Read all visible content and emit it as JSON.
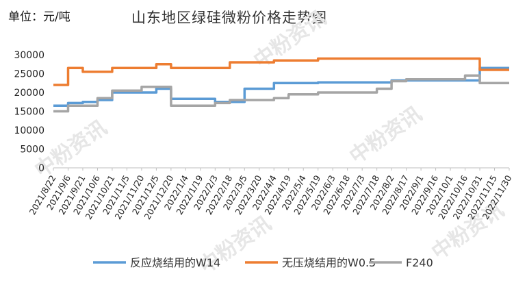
{
  "unit_label": "单位：元/吨",
  "watermark": "中粉资讯",
  "chart_data": {
    "type": "line",
    "title": "山东地区绿硅微粉价格走势图",
    "xlabel": "",
    "ylabel": "",
    "ylim": [
      0,
      30000
    ],
    "yticks": [
      0,
      5000,
      10000,
      15000,
      20000,
      25000,
      30000
    ],
    "grid": false,
    "legend_position": "bottom",
    "categories": [
      "2021/8/22",
      "2021/9/6",
      "2021/9/21",
      "2021/10/6",
      "2021/10/21",
      "2021/11/5",
      "2021/11/20",
      "2021/12/5",
      "2021/12/20",
      "2022/1/4",
      "2022/1/19",
      "2022/2/3",
      "2022/2/18",
      "2022/3/5",
      "2022/3/20",
      "2022/4/4",
      "2022/4/19",
      "2022/5/4",
      "2022/5/19",
      "2022/6/3",
      "2022/6/18",
      "2022/7/3",
      "2022/7/18",
      "2022/8/2",
      "2022/8/17",
      "2022/9/1",
      "2022/9/16",
      "2022/10/1",
      "2022/10/16",
      "2022/10/31",
      "2022/11/15",
      "2022/11/30"
    ],
    "series": [
      {
        "name": "反应烧结用的W14",
        "color": "#5b9bd5",
        "points": [
          [
            "2021/8/22",
            16500
          ],
          [
            "2021/9/6",
            16500
          ],
          [
            "2021/9/6",
            17200
          ],
          [
            "2021/9/21",
            17200
          ],
          [
            "2021/9/21",
            17500
          ],
          [
            "2021/10/6",
            17500
          ],
          [
            "2021/10/6",
            18000
          ],
          [
            "2021/10/21",
            18000
          ],
          [
            "2021/10/21",
            20000
          ],
          [
            "2021/11/5",
            20000
          ],
          [
            "2021/12/5",
            20000
          ],
          [
            "2021/12/5",
            21000
          ],
          [
            "2021/12/20",
            21000
          ],
          [
            "2021/12/20",
            18300
          ],
          [
            "2022/2/3",
            18300
          ],
          [
            "2022/2/3",
            17500
          ],
          [
            "2022/3/5",
            17500
          ],
          [
            "2022/3/5",
            21000
          ],
          [
            "2022/4/4",
            21000
          ],
          [
            "2022/4/4",
            22500
          ],
          [
            "2022/5/19",
            22500
          ],
          [
            "2022/5/19",
            22700
          ],
          [
            "2022/8/2",
            22700
          ],
          [
            "2022/8/2",
            23200
          ],
          [
            "2022/10/31",
            23200
          ],
          [
            "2022/10/31",
            26500
          ],
          [
            "2022/11/30",
            26500
          ]
        ]
      },
      {
        "name": "无压烧结用的W0.5",
        "color": "#ed7d31",
        "points": [
          [
            "2021/8/22",
            22000
          ],
          [
            "2021/9/6",
            22000
          ],
          [
            "2021/9/6",
            22700
          ],
          [
            "2021/9/6",
            26500
          ],
          [
            "2021/9/21",
            26500
          ],
          [
            "2021/9/21",
            25500
          ],
          [
            "2021/10/21",
            25500
          ],
          [
            "2021/10/21",
            26500
          ],
          [
            "2021/12/5",
            26500
          ],
          [
            "2021/12/5",
            27500
          ],
          [
            "2021/12/20",
            27500
          ],
          [
            "2021/12/20",
            26500
          ],
          [
            "2022/2/18",
            26500
          ],
          [
            "2022/2/18",
            28000
          ],
          [
            "2022/4/4",
            28000
          ],
          [
            "2022/4/4",
            28500
          ],
          [
            "2022/5/19",
            28500
          ],
          [
            "2022/5/19",
            29000
          ],
          [
            "2022/10/31",
            29000
          ],
          [
            "2022/10/31",
            26000
          ],
          [
            "2022/11/30",
            26000
          ]
        ]
      },
      {
        "name": "F240",
        "color": "#a5a5a5",
        "points": [
          [
            "2021/8/22",
            15000
          ],
          [
            "2021/9/6",
            15000
          ],
          [
            "2021/9/6",
            16000
          ],
          [
            "2021/9/6",
            16500
          ],
          [
            "2021/10/6",
            16500
          ],
          [
            "2021/10/6",
            18500
          ],
          [
            "2021/10/21",
            18500
          ],
          [
            "2021/10/21",
            19500
          ],
          [
            "2021/10/21",
            20500
          ],
          [
            "2021/11/20",
            20500
          ],
          [
            "2021/11/20",
            21500
          ],
          [
            "2021/12/20",
            21500
          ],
          [
            "2021/12/20",
            16500
          ],
          [
            "2022/2/3",
            16500
          ],
          [
            "2022/2/3",
            17200
          ],
          [
            "2022/2/18",
            17200
          ],
          [
            "2022/2/18",
            18000
          ],
          [
            "2022/4/4",
            18000
          ],
          [
            "2022/4/4",
            18500
          ],
          [
            "2022/4/19",
            18500
          ],
          [
            "2022/4/19",
            19500
          ],
          [
            "2022/5/19",
            19500
          ],
          [
            "2022/5/19",
            20000
          ],
          [
            "2022/7/18",
            20000
          ],
          [
            "2022/7/18",
            21000
          ],
          [
            "2022/8/2",
            21000
          ],
          [
            "2022/8/2",
            23000
          ],
          [
            "2022/8/17",
            23000
          ],
          [
            "2022/8/17",
            23500
          ],
          [
            "2022/10/16",
            23500
          ],
          [
            "2022/10/16",
            24500
          ],
          [
            "2022/10/31",
            24500
          ],
          [
            "2022/10/31",
            22500
          ],
          [
            "2022/11/30",
            22500
          ]
        ]
      }
    ]
  }
}
